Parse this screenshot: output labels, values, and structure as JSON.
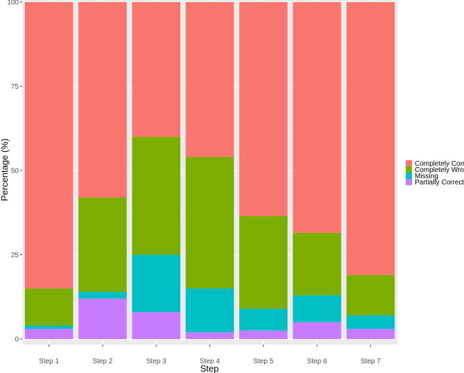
{
  "chart_data": {
    "type": "bar",
    "stacked": true,
    "title": "",
    "xlabel": "Step",
    "ylabel": "Percentage (%)",
    "ylim": [
      0,
      100
    ],
    "yticks": [
      "0",
      "25",
      "50",
      "75",
      "100"
    ],
    "categories": [
      "Step 1",
      "Step 2",
      "Step 3",
      "Step 4",
      "Step 5",
      "Step 6",
      "Step 7"
    ],
    "legend_position": "right",
    "grid": true,
    "series": [
      {
        "name": "Partially Correct",
        "color": "#C77CFF",
        "values": [
          3,
          12,
          8,
          2,
          2.5,
          5,
          3
        ]
      },
      {
        "name": "Missing",
        "color": "#00BFC4",
        "values": [
          1,
          2,
          17,
          13,
          6.5,
          8,
          4
        ]
      },
      {
        "name": "Completely Wrong",
        "color": "#7CAE00",
        "values": [
          11,
          28,
          35,
          39,
          27.5,
          18.5,
          12
        ]
      },
      {
        "name": "Completely Correct",
        "color": "#F8766D",
        "values": [
          85,
          58,
          40,
          46,
          63.5,
          68.5,
          81
        ]
      }
    ],
    "legend_order": [
      "Completely Correct",
      "Completely Wrong",
      "Missing",
      "Partially Correct"
    ]
  }
}
